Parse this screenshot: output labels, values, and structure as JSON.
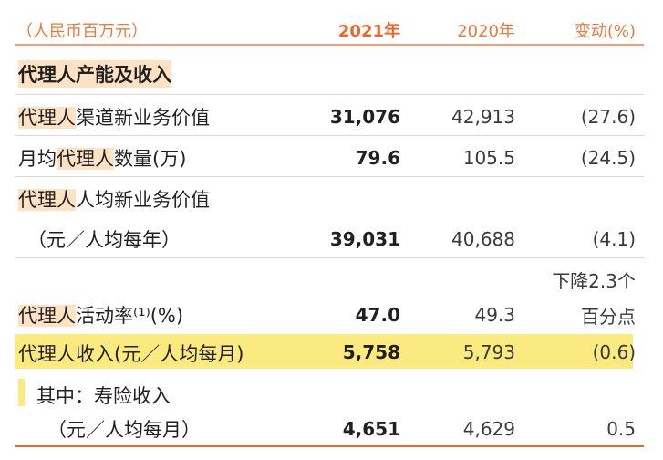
{
  "header": {
    "unit": "（人民币百万元）",
    "col1": "2021年",
    "col2": "2020年",
    "col3": "变动(%)"
  },
  "section_title": "代理人产能及收入",
  "rows": {
    "nbv": {
      "label_hl": "代理人",
      "label_rest": "渠道新业务价值",
      "v2021": "31,076",
      "v2020": "42,913",
      "change": "(27.6)"
    },
    "headcount": {
      "label_pre": "月均",
      "label_hl": "代理人",
      "label_rest": "数量(万)",
      "v2021": "79.6",
      "v2020": "105.5",
      "change": "(24.5)"
    },
    "nbv_per": {
      "label_hl": "代理人",
      "label_rest": "人均新业务价值",
      "label_line2": "（元／人均每年）",
      "v2021": "39,031",
      "v2020": "40,688",
      "change": "(4.1)"
    },
    "activity": {
      "label_hl": "代理人",
      "label_rest": "活动率⁽¹⁾(%)",
      "v2021": "47.0",
      "v2020": "49.3",
      "change_line1": "下降2.3个",
      "change_line2": "百分点"
    },
    "income": {
      "label": "代理人收入(元／人均每月)",
      "v2021": "5,758",
      "v2020": "5,793",
      "change": "(0.6)"
    },
    "insurance_income": {
      "label_line1": "其中：寿险收入",
      "label_line2": "（元／人均每月）",
      "v2021": "4,651",
      "v2020": "4,629",
      "change": "0.5"
    }
  },
  "colors": {
    "accent_orange": "#e8692d",
    "highlight_peach": "#fde3c4",
    "highlight_yellow": "#fbea7f"
  }
}
